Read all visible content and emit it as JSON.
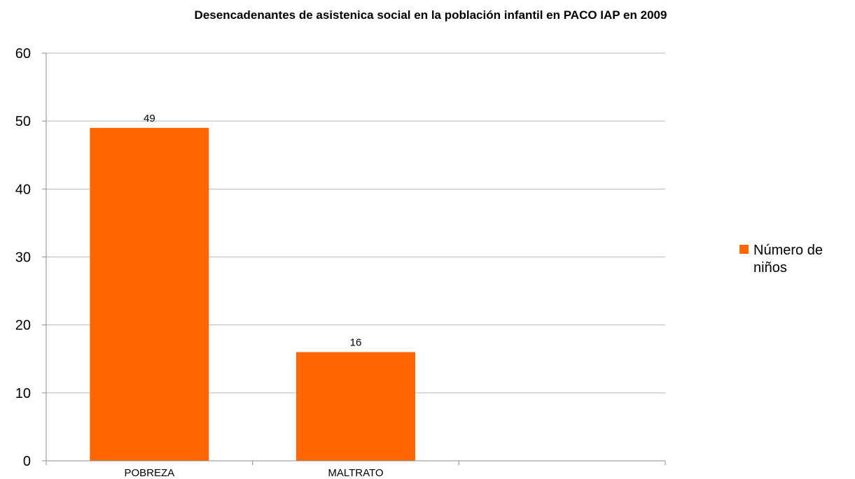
{
  "chart_data": {
    "type": "bar",
    "title": "Desencadenantes de asistenica social en la población infantil en PACO IAP en 2009",
    "categories": [
      "POBREZA",
      "MALTRATO",
      ""
    ],
    "series": [
      {
        "name": "Número de niños",
        "values": [
          49,
          16,
          null
        ],
        "color": "#ff6600"
      }
    ],
    "data_labels": [
      "49",
      "16",
      ""
    ],
    "xlabel": "",
    "ylabel": "",
    "ylim": [
      0,
      60
    ],
    "yticks": [
      0,
      10,
      20,
      30,
      40,
      50,
      60
    ],
    "grid": true,
    "legend": {
      "position": "right",
      "lines": [
        "Número de",
        "niños"
      ]
    }
  },
  "colors": {
    "bar": "#ff6600",
    "grid": "#b8b8b8",
    "axis": "#8c8c8c"
  }
}
